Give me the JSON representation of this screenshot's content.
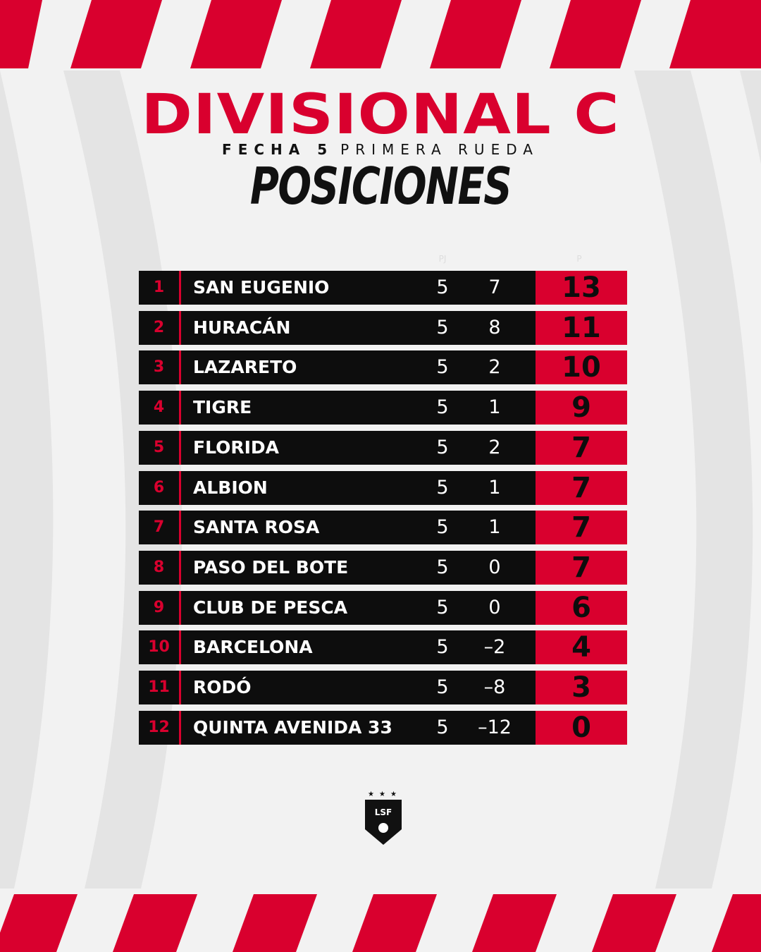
{
  "header": {
    "title": "DIVISIONAL C",
    "round": "FECHA 5",
    "phase": "PRIMERA RUEDA",
    "heading": "POSICIONES"
  },
  "table": {
    "columns": [
      "PJ",
      "P"
    ],
    "rows": [
      [
        "1",
        "SAN EUGENIO",
        "5",
        "7",
        "13"
      ],
      [
        "2",
        "HURACÁN",
        "5",
        "8",
        "11"
      ],
      [
        "3",
        "LAZARETO",
        "5",
        "2",
        "10"
      ],
      [
        "4",
        "TIGRE",
        "5",
        "1",
        "9"
      ],
      [
        "5",
        "FLORIDA",
        "5",
        "2",
        "7"
      ],
      [
        "6",
        "ALBION",
        "5",
        "1",
        "7"
      ],
      [
        "7",
        "SANTA ROSA",
        "5",
        "1",
        "7"
      ],
      [
        "8",
        "PASO DEL BOTE",
        "5",
        "0",
        "7"
      ],
      [
        "9",
        "CLUB DE PESCA",
        "5",
        "0",
        "6"
      ],
      [
        "10",
        "BARCELONA",
        "5",
        "–2",
        "4"
      ],
      [
        "11",
        "RODÓ",
        "5",
        "–8",
        "3"
      ],
      [
        "12",
        "QUINTA AVENIDA 33",
        "5",
        "–12",
        "0"
      ]
    ]
  },
  "logo": {
    "text": "LSF"
  }
}
